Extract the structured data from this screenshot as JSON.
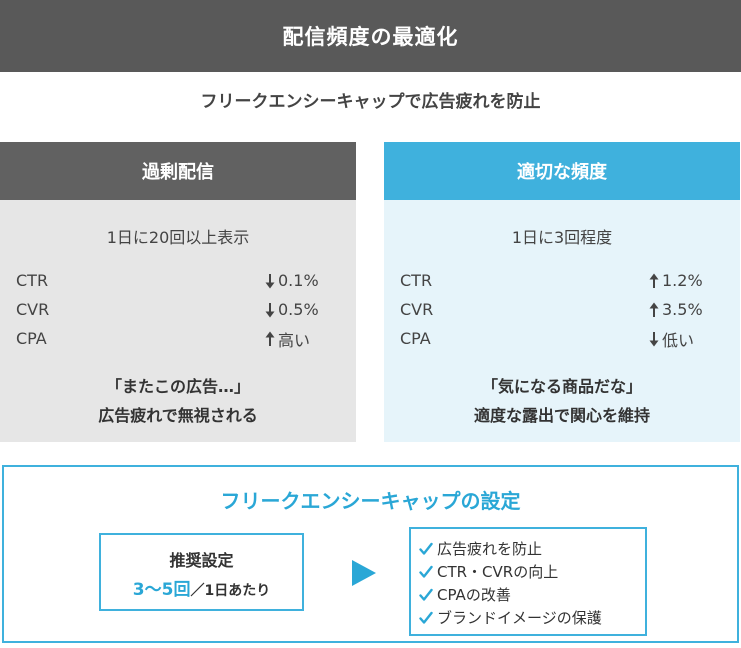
{
  "header": {
    "title": "配信頻度の最適化"
  },
  "subtitle": "フリークエンシーキャップで広告疲れを防止",
  "panels": [
    {
      "title": "過剰配信",
      "frequency": "1日に20回以上表示",
      "metrics": [
        {
          "name": "CTR",
          "direction": "down",
          "value": "0.1%"
        },
        {
          "name": "CVR",
          "direction": "down",
          "value": "0.5%"
        },
        {
          "name": "CPA",
          "direction": "up",
          "value": "高い"
        }
      ],
      "quote_line1": "「またこの広告…」",
      "quote_line2": "広告疲れで無視される"
    },
    {
      "title": "適切な頻度",
      "frequency": "1日に3回程度",
      "metrics": [
        {
          "name": "CTR",
          "direction": "up",
          "value": "1.2%"
        },
        {
          "name": "CVR",
          "direction": "up",
          "value": "3.5%"
        },
        {
          "name": "CPA",
          "direction": "down",
          "value": "低い"
        }
      ],
      "quote_line1": "「気になる商品だな」",
      "quote_line2": "適度な露出で関心を維持"
    }
  ],
  "setting": {
    "title": "フリークエンシーキャップの設定",
    "recommend_label": "推奨設定",
    "recommend_value": "3〜5回",
    "recommend_per": "／1日あたり",
    "benefits": [
      "広告疲れを防止",
      "CTR・CVRの向上",
      "CPAの改善",
      "ブランドイメージの保護"
    ]
  },
  "icons": {
    "arrow_up": "arrow-up-icon",
    "arrow_down": "arrow-down-icon",
    "check": "check-icon",
    "play": "play-triangle-icon"
  },
  "colors": {
    "header_bg": "#595959",
    "accent": "#3fb1dd",
    "left_header": "#616161",
    "left_body": "#e6e6e6",
    "right_body": "#e6f4fa"
  }
}
